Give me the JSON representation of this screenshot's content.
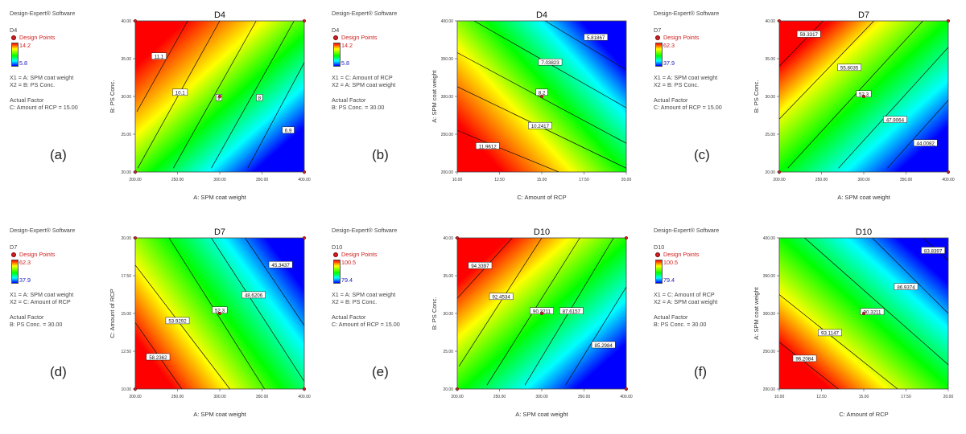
{
  "colors": {
    "ramp": [
      "#ff0000",
      "#ffff00",
      "#00ff00",
      "#00ffff",
      "#0000ff"
    ],
    "design_point": "#d02020"
  },
  "chart_data": [
    {
      "id": "a",
      "panel_letter": "(a)",
      "type": "contour",
      "title": "D4",
      "software": "Design-Expert® Software",
      "response": "D4",
      "design_points_label": "Design Points",
      "legend_high": "14.2",
      "legend_low": "5.8",
      "x1_text": "X1 = A: SPM coat weight",
      "x2_text": "X2 = B: PS Conc.",
      "actual_factor_heading": "Actual Factor",
      "actual_factor_text": "C: Amount of RCP = 15.00",
      "xlabel": "A: SPM coat weight",
      "ylabel": "B: PS Conc.",
      "xlim": [
        200,
        400
      ],
      "ylim": [
        20,
        40
      ],
      "xticks": [
        "200.00",
        "250.00",
        "300.00",
        "350.00",
        "400.00"
      ],
      "yticks": [
        "20.00",
        "25.00",
        "30.00",
        "35.00",
        "40.00"
      ],
      "colormap": {
        "dir": [
          0.5,
          -0.5
        ],
        "pos": 0.55
      },
      "contours": [
        {
          "label": "11.1",
          "points": [
            [
              202,
              28
            ],
            [
              262,
              40
            ]
          ],
          "label_at": [
            228,
            35.3
          ]
        },
        {
          "label": "10.1",
          "points": [
            [
              203,
              20.5
            ],
            [
              300,
              40
            ]
          ],
          "label_at": [
            253,
            30.5
          ]
        },
        {
          "label": "9",
          "points": [
            [
              245,
              20.5
            ],
            [
              343,
              40
            ]
          ],
          "label_at": [
            299,
            29.8
          ]
        },
        {
          "label": "8",
          "points": [
            [
              290,
              20.5
            ],
            [
              388,
              40
            ]
          ],
          "label_at": [
            347,
            29.8
          ]
        },
        {
          "label": "6.9",
          "points": [
            [
              333,
              20.5
            ],
            [
              400,
              34.5
            ]
          ],
          "label_at": [
            381,
            25.5
          ]
        }
      ],
      "design_points": [
        [
          200,
          20
        ],
        [
          400,
          20
        ],
        [
          200,
          40
        ],
        [
          400,
          40
        ],
        [
          300,
          30
        ]
      ]
    },
    {
      "id": "b",
      "panel_letter": "(b)",
      "type": "contour",
      "title": "D4",
      "software": "Design-Expert® Software",
      "response": "D4",
      "design_points_label": "Design Points",
      "legend_high": "14.2",
      "legend_low": "5.8",
      "x1_text": "X1 = C: Amount of RCP",
      "x2_text": "X2 = A: SPM coat weight",
      "actual_factor_heading": "Actual Factor",
      "actual_factor_text": "B: PS Conc. = 30.00",
      "xlabel": "C: Amount of RCP",
      "ylabel": "A: SPM coat weight",
      "xlim": [
        10,
        20
      ],
      "ylim": [
        200,
        400
      ],
      "xticks": [
        "10.00",
        "12.50",
        "15.00",
        "17.50",
        "20.00"
      ],
      "yticks": [
        "200.00",
        "250.00",
        "300.00",
        "350.00",
        "400.00"
      ],
      "colormap": {
        "dir": [
          0.55,
          0.45
        ],
        "pos": 0.52
      },
      "contours": [
        {
          "label": "5.81867",
          "points": [
            [
              15.2,
              400
            ],
            [
              20,
              335
            ]
          ],
          "label_at": [
            18.2,
            378
          ]
        },
        {
          "label": "7.03823",
          "points": [
            [
              11,
              400
            ],
            [
              20,
              285
            ]
          ],
          "label_at": [
            15.5,
            345
          ]
        },
        {
          "label": "8.2",
          "points": [
            [
              10,
              358
            ],
            [
              20,
              238
            ]
          ],
          "label_at": [
            15,
            305
          ]
        },
        {
          "label": "10.2417",
          "points": [
            [
              10,
              313
            ],
            [
              20,
              205
            ]
          ],
          "label_at": [
            14.9,
            261
          ]
        },
        {
          "label": "11.9612",
          "points": [
            [
              10,
              255
            ],
            [
              16,
              200
            ]
          ],
          "label_at": [
            11.8,
            234
          ]
        }
      ],
      "design_points": [
        [
          15,
          300
        ]
      ]
    },
    {
      "id": "c",
      "panel_letter": "(c)",
      "type": "contour",
      "title": "D7",
      "software": "Design-Expert® Software",
      "response": "D7",
      "design_points_label": "Design Points",
      "legend_high": "62.3",
      "legend_low": "37.9",
      "x1_text": "X1 = A: SPM coat weight",
      "x2_text": "X2 = B: PS Conc.",
      "actual_factor_heading": "Actual Factor",
      "actual_factor_text": "C: Amount of RCP = 15.00",
      "xlabel": "A: SPM coat weight",
      "ylabel": "B: PS Conc.",
      "xlim": [
        200,
        400
      ],
      "ylim": [
        20,
        40
      ],
      "xticks": [
        "200.00",
        "250.00",
        "300.00",
        "350.00",
        "400.00"
      ],
      "yticks": [
        "20.00",
        "25.00",
        "30.00",
        "35.00",
        "40.00"
      ],
      "colormap": {
        "dir": [
          0.5,
          -0.5
        ],
        "pos": 0.0
      },
      "contours": [
        {
          "label": "59.3317",
          "points": [
            [
              200,
              34
            ],
            [
              252,
              40
            ]
          ],
          "label_at": [
            235,
            38.2
          ]
        },
        {
          "label": "55.8035",
          "points": [
            [
              200,
              27
            ],
            [
              312,
              40
            ]
          ],
          "label_at": [
            283,
            33.8
          ]
        },
        {
          "label": "52.3",
          "points": [
            [
              210,
              20.5
            ],
            [
              370,
              40
            ]
          ],
          "label_at": [
            300,
            30.3
          ]
        },
        {
          "label": "47.9064",
          "points": [
            [
              270,
              20.5
            ],
            [
              400,
              36.5
            ]
          ],
          "label_at": [
            337,
            26.9
          ]
        },
        {
          "label": "44.0082",
          "points": [
            [
              328,
              20.5
            ],
            [
              400,
              29.5
            ]
          ],
          "label_at": [
            373,
            23.8
          ]
        }
      ],
      "design_points": [
        [
          200,
          20
        ],
        [
          400,
          20
        ],
        [
          200,
          40
        ],
        [
          400,
          40
        ],
        [
          300,
          30
        ]
      ]
    },
    {
      "id": "d",
      "panel_letter": "(d)",
      "type": "contour",
      "title": "D7",
      "software": "Design-Expert® Software",
      "response": "D7",
      "design_points_label": "Design Points",
      "legend_high": "62.3",
      "legend_low": "37.9",
      "x1_text": "X1 = A: SPM coat weight",
      "x2_text": "X2 = C: Amount of RCP",
      "actual_factor_heading": "Actual Factor",
      "actual_factor_text": "B: PS Conc. = 30.00",
      "xlabel": "A: SPM coat weight",
      "ylabel": "C: Amount of RCP",
      "xlim": [
        200,
        400
      ],
      "ylim": [
        10,
        20
      ],
      "xticks": [
        "200.00",
        "250.00",
        "300.00",
        "350.00",
        "400.00"
      ],
      "yticks": [
        "10.00",
        "12.50",
        "15.00",
        "17.50",
        "20.00"
      ],
      "colormap": {
        "dir": [
          0.6,
          0.4
        ],
        "pos": 0.2
      },
      "contours": [
        {
          "label": "58.2362",
          "points": [
            [
              200,
              14.4
            ],
            [
              255,
              10
            ]
          ],
          "label_at": [
            227,
            12.1
          ]
        },
        {
          "label": "53.9292",
          "points": [
            [
              200,
              18.2
            ],
            [
              312,
              10
            ]
          ],
          "label_at": [
            250,
            14.5
          ]
        },
        {
          "label": "52.3",
          "points": [
            [
              240,
              20
            ],
            [
              353,
              10
            ]
          ],
          "label_at": [
            300,
            15.2
          ]
        },
        {
          "label": "48.6206",
          "points": [
            [
              290,
              20
            ],
            [
              400,
              10.5
            ]
          ],
          "label_at": [
            340,
            16.2
          ]
        },
        {
          "label": "45.3437",
          "points": [
            [
              330,
              20
            ],
            [
              400,
              14.2
            ]
          ],
          "label_at": [
            372,
            18.2
          ]
        }
      ],
      "design_points": [
        [
          200,
          10
        ],
        [
          400,
          10
        ],
        [
          200,
          20
        ],
        [
          400,
          20
        ],
        [
          300,
          15
        ]
      ]
    },
    {
      "id": "e",
      "panel_letter": "(e)",
      "type": "contour",
      "title": "D10",
      "software": "Design-Expert® Software",
      "response": "D10",
      "design_points_label": "Design Points",
      "legend_high": "100.5",
      "legend_low": "79.4",
      "x1_text": "X1 = A: SPM coat weight",
      "x2_text": "X2 = B: PS Conc.",
      "actual_factor_heading": "Actual Factor",
      "actual_factor_text": "C: Amount of RCP = 15.00",
      "xlabel": "A: SPM coat weight",
      "ylabel": "B: PS Conc.",
      "xlim": [
        200,
        400
      ],
      "ylim": [
        20,
        40
      ],
      "xticks": [
        "200.00",
        "250.00",
        "300.00",
        "350.00",
        "400.00"
      ],
      "yticks": [
        "20.00",
        "25.00",
        "30.00",
        "35.00",
        "40.00"
      ],
      "colormap": {
        "dir": [
          0.5,
          -0.5
        ],
        "pos": 0.2
      },
      "contours": [
        {
          "label": "94.3397",
          "points": [
            [
              200,
              32
            ],
            [
              265,
              40
            ]
          ],
          "label_at": [
            227,
            36.3
          ]
        },
        {
          "label": "92.4534",
          "points": [
            [
              202,
              23
            ],
            [
              300,
              40
            ]
          ],
          "label_at": [
            252,
            32.2
          ]
        },
        {
          "label": "90.3211",
          "points": [
            [
              235,
              20.5
            ],
            [
              345,
              40
            ]
          ],
          "label_at": [
            300,
            30.3
          ]
        },
        {
          "label": "87.6157",
          "points": [
            [
              280,
              20.5
            ],
            [
              385,
              40
            ]
          ],
          "label_at": [
            335,
            30.3
          ]
        },
        {
          "label": "85.2984",
          "points": [
            [
              328,
              20.5
            ],
            [
              400,
              33.5
            ]
          ],
          "label_at": [
            373,
            25.8
          ]
        }
      ],
      "design_points": [
        [
          200,
          20
        ],
        [
          400,
          20
        ],
        [
          200,
          40
        ],
        [
          400,
          40
        ],
        [
          300,
          30
        ]
      ]
    },
    {
      "id": "f",
      "panel_letter": "(f)",
      "type": "contour",
      "title": "D10",
      "software": "Design-Expert® Software",
      "response": "D10",
      "design_points_label": "Design Points",
      "legend_high": "100.5",
      "legend_low": "79.4",
      "x1_text": "X1 = C: Amount of RCP",
      "x2_text": "X2 = A: SPM coat weight",
      "actual_factor_heading": "Actual Factor",
      "actual_factor_text": "B: PS Conc. = 30.00",
      "xlabel": "C: Amount of RCP",
      "ylabel": "A: SPM coat weight",
      "xlim": [
        10,
        20
      ],
      "ylim": [
        200,
        400
      ],
      "xticks": [
        "10.00",
        "12.50",
        "15.00",
        "17.50",
        "20.00"
      ],
      "yticks": [
        "200.00",
        "250.00",
        "300.00",
        "350.00",
        "400.00"
      ],
      "colormap": {
        "dir": [
          0.5,
          0.5
        ],
        "pos": 0.1
      },
      "contours": [
        {
          "label": "96.2084",
          "points": [
            [
              10,
              262
            ],
            [
              13.5,
              200
            ]
          ],
          "label_at": [
            11.5,
            240
          ]
        },
        {
          "label": "93.1147",
          "points": [
            [
              10,
              325
            ],
            [
              17,
              200
            ]
          ],
          "label_at": [
            13,
            274
          ]
        },
        {
          "label": "90.3211",
          "points": [
            [
              11.5,
              400
            ],
            [
              20,
              232
            ]
          ],
          "label_at": [
            15.5,
            302
          ]
        },
        {
          "label": "86.9374",
          "points": [
            [
              15.5,
              400
            ],
            [
              20,
              300
            ]
          ],
          "label_at": [
            17.5,
            335
          ]
        },
        {
          "label": "83.8397",
          "points": [
            [
              18.5,
              400
            ],
            [
              20,
              370
            ]
          ],
          "label_at": [
            19.1,
            383
          ]
        }
      ],
      "design_points": [
        [
          15,
          300
        ]
      ]
    }
  ]
}
